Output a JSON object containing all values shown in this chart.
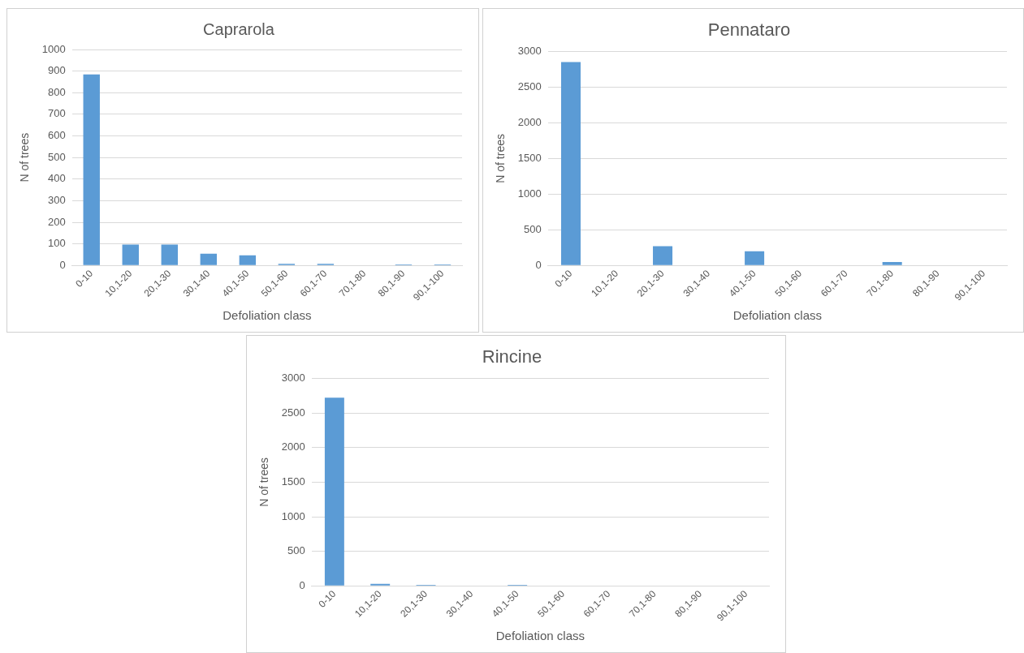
{
  "chart_data": [
    {
      "type": "bar",
      "title": "Caprarola",
      "xlabel": "Defoliation class",
      "ylabel": "N of trees",
      "categories": [
        "0-10",
        "10,1-20",
        "20,1-30",
        "30,1-40",
        "40,1-50",
        "50,1-60",
        "60,1-70",
        "70,1-80",
        "80,1-90",
        "90,1-100"
      ],
      "values": [
        885,
        97,
        97,
        55,
        47,
        8,
        8,
        0,
        5,
        5
      ],
      "color": "#5b9bd5",
      "ylim": [
        0,
        1000
      ],
      "yticks": [
        0,
        100,
        200,
        300,
        400,
        500,
        600,
        700,
        800,
        900,
        1000
      ],
      "grid": "y",
      "legend": false
    },
    {
      "type": "bar",
      "title": "Pennataro",
      "xlabel": "Defoliation class",
      "ylabel": "N of trees",
      "categories": [
        "0-10",
        "10,1-20",
        "20,1-30",
        "30,1-40",
        "40,1-50",
        "50,1-60",
        "60,1-70",
        "70,1-80",
        "80,1-90",
        "90,1-100"
      ],
      "values": [
        2850,
        0,
        270,
        0,
        200,
        0,
        0,
        50,
        0,
        0
      ],
      "color": "#5b9bd5",
      "ylim": [
        0,
        3000
      ],
      "yticks": [
        0,
        500,
        1000,
        1500,
        2000,
        2500,
        3000
      ],
      "grid": "y",
      "legend": false
    },
    {
      "type": "bar",
      "title": "Rincine",
      "xlabel": "Defoliation class",
      "ylabel": "N of trees",
      "categories": [
        "0-10",
        "10,1-20",
        "20,1-30",
        "30,1-40",
        "40,1-50",
        "50,1-60",
        "60,1-70",
        "70,1-80",
        "80,1-90",
        "90,1-100"
      ],
      "values": [
        2720,
        30,
        15,
        0,
        15,
        0,
        0,
        0,
        0,
        0
      ],
      "color": "#5b9bd5",
      "ylim": [
        0,
        3000
      ],
      "yticks": [
        0,
        500,
        1000,
        1500,
        2000,
        2500,
        3000
      ],
      "grid": "y",
      "legend": false
    }
  ]
}
